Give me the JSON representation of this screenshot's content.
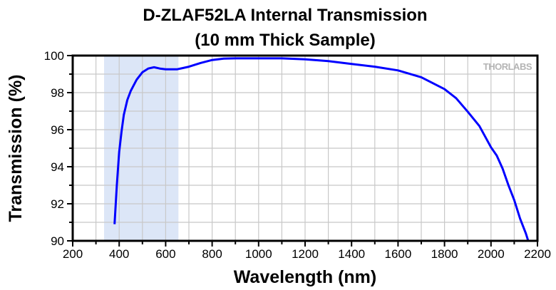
{
  "chart_data": {
    "type": "line",
    "title": [
      "D-ZLAF52LA Internal Transmission",
      "(10 mm Thick Sample)"
    ],
    "xlabel": "Wavelength (nm)",
    "ylabel": "Transmission (%)",
    "xlim": [
      200,
      2200
    ],
    "ylim": [
      90,
      100
    ],
    "xticks": [
      200,
      400,
      600,
      800,
      1000,
      1200,
      1400,
      1600,
      1800,
      2000,
      2200
    ],
    "yticks": [
      90,
      92,
      94,
      96,
      98,
      100
    ],
    "grid": true,
    "watermark": "THORLABS",
    "shaded_region": {
      "x": [
        335,
        655
      ],
      "color": "#dce6f7"
    },
    "series": [
      {
        "color": "#0000ff",
        "x": [
          380,
          390,
          400,
          410,
          420,
          435,
          450,
          475,
          500,
          525,
          550,
          575,
          600,
          650,
          700,
          750,
          800,
          850,
          900,
          1000,
          1100,
          1200,
          1300,
          1400,
          1500,
          1600,
          1700,
          1800,
          1850,
          1900,
          1950,
          2000,
          2025,
          2050,
          2075,
          2100,
          2125,
          2150,
          2160
        ],
        "y": [
          90.9,
          93.0,
          94.8,
          95.9,
          96.8,
          97.6,
          98.1,
          98.7,
          99.1,
          99.3,
          99.37,
          99.3,
          99.26,
          99.26,
          99.4,
          99.6,
          99.76,
          99.84,
          99.85,
          99.85,
          99.85,
          99.8,
          99.7,
          99.55,
          99.4,
          99.2,
          98.83,
          98.19,
          97.7,
          96.97,
          96.2,
          95.05,
          94.6,
          93.9,
          93.0,
          92.2,
          91.2,
          90.4,
          90.0
        ]
      }
    ]
  }
}
